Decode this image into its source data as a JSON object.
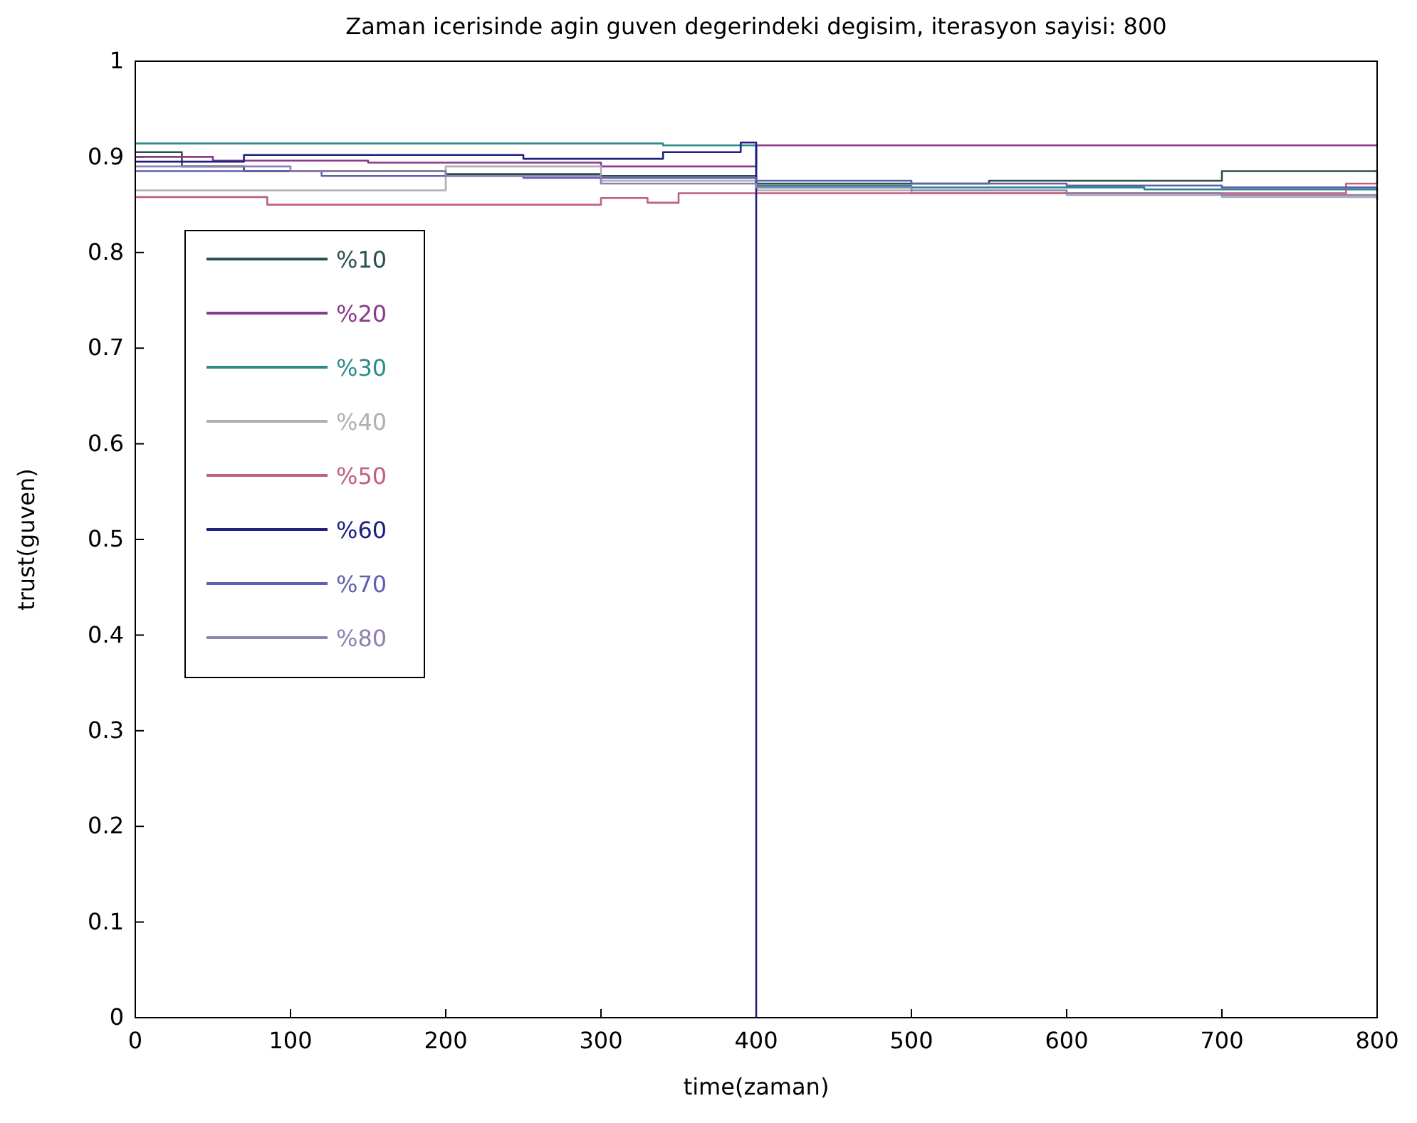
{
  "chart_data": {
    "type": "step",
    "title": "Zaman icerisinde agin guven degerindeki degisim, iterasyon sayisi: 800",
    "xlabel": "time(zaman)",
    "ylabel": "trust(guven)",
    "xlim": [
      0,
      800
    ],
    "ylim": [
      0,
      1
    ],
    "xticks": [
      0,
      100,
      200,
      300,
      400,
      500,
      600,
      700,
      800
    ],
    "yticks": [
      0,
      0.1,
      0.2,
      0.3,
      0.4,
      0.5,
      0.6,
      0.7,
      0.8,
      0.9,
      1
    ],
    "grid": false,
    "legend": "left",
    "line_style": "solid",
    "marker": "none",
    "series": [
      {
        "name": "%10",
        "color": "#2f4f4f",
        "x": [
          0,
          30,
          70,
          120,
          200,
          300,
          400,
          480,
          550,
          620,
          700,
          800
        ],
        "values": [
          0.905,
          0.89,
          0.885,
          0.885,
          0.882,
          0.88,
          0.872,
          0.872,
          0.875,
          0.875,
          0.885,
          0.885
        ]
      },
      {
        "name": "%20",
        "color": "#8b3a8b",
        "x": [
          0,
          50,
          150,
          300,
          400,
          800
        ],
        "values": [
          0.9,
          0.896,
          0.894,
          0.89,
          0.912,
          0.912
        ]
      },
      {
        "name": "%30",
        "color": "#2e8b8b",
        "x": [
          0,
          340,
          400,
          500,
          650,
          800
        ],
        "values": [
          0.914,
          0.912,
          0.87,
          0.868,
          0.866,
          0.866
        ]
      },
      {
        "name": "%40",
        "color": "#b0b0b0",
        "x": [
          0,
          190,
          200,
          300,
          400,
          500,
          600,
          700,
          800
        ],
        "values": [
          0.865,
          0.865,
          0.89,
          0.875,
          0.865,
          0.862,
          0.86,
          0.858,
          0.855
        ]
      },
      {
        "name": "%50",
        "color": "#c06080",
        "x": [
          0,
          85,
          300,
          330,
          350,
          630,
          780,
          800
        ],
        "values": [
          0.858,
          0.85,
          0.857,
          0.852,
          0.862,
          0.862,
          0.872,
          0.885
        ]
      },
      {
        "name": "%60",
        "color": "#20207f",
        "x": [
          0,
          70,
          250,
          340,
          390,
          400
        ],
        "values": [
          0.895,
          0.902,
          0.898,
          0.905,
          0.915,
          0
        ]
      },
      {
        "name": "%70",
        "color": "#6060b0",
        "x": [
          0,
          120,
          250,
          400,
          500,
          600,
          700,
          800
        ],
        "values": [
          0.885,
          0.88,
          0.878,
          0.875,
          0.872,
          0.87,
          0.868,
          0.862
        ]
      },
      {
        "name": "%80",
        "color": "#9080b0",
        "x": [
          0,
          100,
          200,
          300,
          400,
          500,
          600,
          700,
          800
        ],
        "values": [
          0.89,
          0.885,
          0.88,
          0.872,
          0.868,
          0.865,
          0.862,
          0.86,
          0.855
        ]
      }
    ]
  }
}
